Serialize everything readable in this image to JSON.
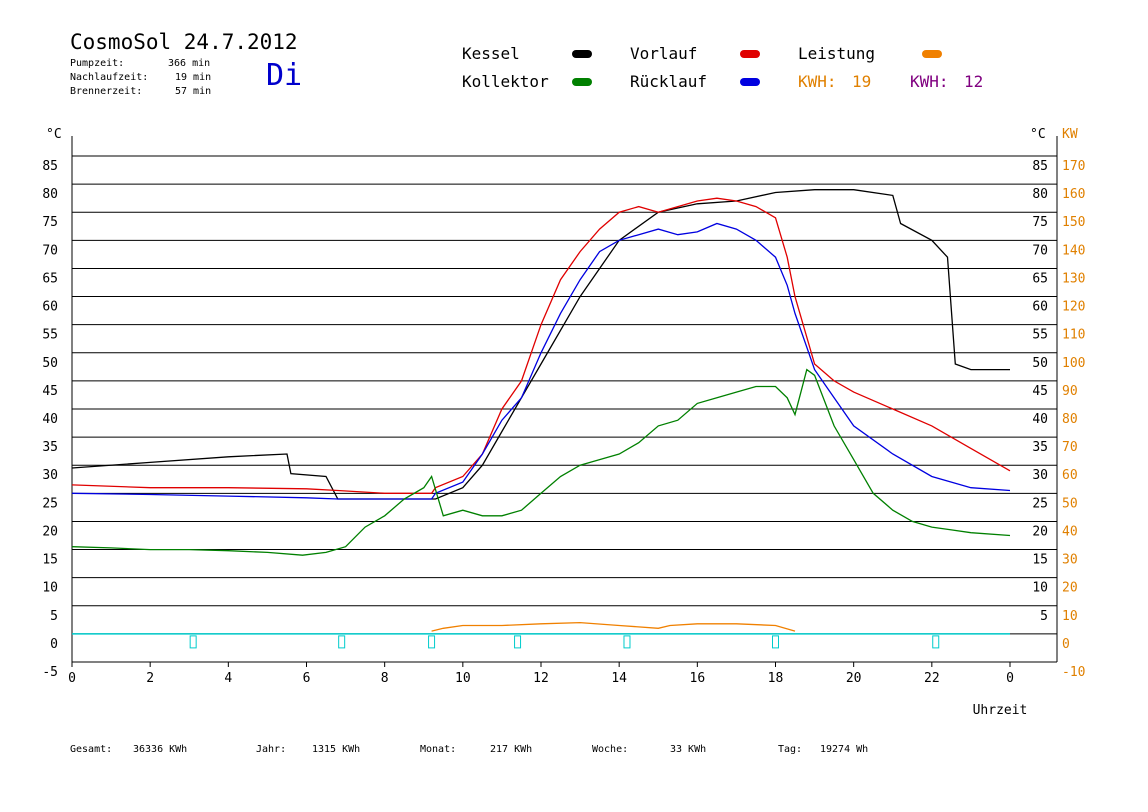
{
  "header": {
    "title": "CosmoSol 24.7.2012",
    "day": "Di",
    "stats": [
      {
        "label": "Pumpzeit:",
        "value": "366 min"
      },
      {
        "label": "Nachlaufzeit:",
        "value": "19 min"
      },
      {
        "label": "Brennerzeit:",
        "value": "57 min"
      }
    ]
  },
  "legend": {
    "kessel": {
      "label": "Kessel",
      "color": "#000000"
    },
    "vorlauf": {
      "label": "Vorlauf",
      "color": "#e00000"
    },
    "leistung": {
      "label": "Leistung",
      "color": "#f08000"
    },
    "kollektor": {
      "label": "Kollektor",
      "color": "#008000"
    },
    "ruecklauf": {
      "label": "Rücklauf",
      "color": "#0000e0"
    },
    "kwh1": {
      "label": "KWH:",
      "value": "19",
      "color": "#e08000"
    },
    "kwh2": {
      "label": "KWH:",
      "value": "12",
      "color": "#800080"
    }
  },
  "footer": [
    {
      "label": "Gesamt:",
      "value": "36336 KWh"
    },
    {
      "label": "Jahr:",
      "value": "1315 KWh"
    },
    {
      "label": "Monat:",
      "value": "217 KWh"
    },
    {
      "label": "Woche:",
      "value": "33 KWh"
    },
    {
      "label": "Tag:",
      "value": "19274 Wh"
    }
  ],
  "chart_data": {
    "type": "line",
    "xlabel": "Uhrzeit",
    "ylabel_left": "°C",
    "ylabel_right_1": "°C",
    "ylabel_right_2": "KW",
    "xlim": [
      0,
      24
    ],
    "ylim": [
      -5,
      85
    ],
    "x_ticks": [
      "0",
      "2",
      "4",
      "6",
      "8",
      "10",
      "12",
      "14",
      "16",
      "18",
      "20",
      "22",
      "0"
    ],
    "y_ticks_left": [
      "-5",
      "0",
      "5",
      "10",
      "15",
      "20",
      "25",
      "30",
      "35",
      "40",
      "45",
      "50",
      "55",
      "60",
      "65",
      "70",
      "75",
      "80",
      "85"
    ],
    "y_ticks_right_c": [
      "5",
      "10",
      "15",
      "20",
      "25",
      "30",
      "35",
      "40",
      "45",
      "50",
      "55",
      "60",
      "65",
      "70",
      "75",
      "80",
      "85"
    ],
    "y_ticks_right_kw": [
      "-10",
      "0",
      "10",
      "20",
      "30",
      "40",
      "50",
      "60",
      "70",
      "80",
      "90",
      "100",
      "110",
      "120",
      "130",
      "140",
      "150",
      "160",
      "170"
    ],
    "grid": true,
    "series": [
      {
        "name": "Kessel",
        "color": "#000000",
        "x": [
          0,
          2,
          4,
          5.5,
          5.6,
          6.5,
          6.8,
          9.3,
          10,
          10.5,
          11,
          12,
          13,
          14,
          15,
          16,
          17,
          18,
          19,
          20,
          21,
          21.2,
          22,
          22.4,
          22.6,
          23,
          24
        ],
        "y": [
          29.5,
          30.5,
          31.5,
          32,
          28.5,
          28,
          24,
          24,
          26,
          30,
          36,
          48,
          60,
          70,
          75,
          76.5,
          77,
          78.5,
          79,
          79,
          78,
          73,
          70,
          67,
          48,
          47,
          47
        ]
      },
      {
        "name": "Vorlauf",
        "color": "#e00000",
        "x": [
          0,
          2,
          4,
          6,
          6.8,
          8,
          9.2,
          9.3,
          10,
          10.5,
          11,
          11.5,
          12,
          12.5,
          13,
          13.5,
          14,
          14.5,
          15,
          15.5,
          16,
          16.5,
          17,
          17.5,
          18,
          18.3,
          18.5,
          19,
          19.5,
          20,
          21,
          22,
          23,
          24
        ],
        "y": [
          26.5,
          26,
          26,
          25.8,
          25.5,
          25,
          25,
          26,
          28,
          32,
          40,
          45,
          55,
          63,
          68,
          72,
          75,
          76,
          75,
          76,
          77,
          77.5,
          77,
          76,
          74,
          67,
          60,
          48,
          45,
          43,
          40,
          37,
          33,
          29
        ]
      },
      {
        "name": "Rücklauf",
        "color": "#0000e0",
        "x": [
          0,
          2,
          4,
          6,
          6.8,
          8,
          9.2,
          9.3,
          10,
          10.5,
          11,
          11.5,
          12,
          12.5,
          13,
          13.5,
          14,
          14.5,
          15,
          15.5,
          16,
          16.5,
          17,
          17.5,
          18,
          18.3,
          18.5,
          19,
          19.5,
          20,
          21,
          22,
          23,
          24
        ],
        "y": [
          25,
          24.8,
          24.5,
          24.2,
          24,
          24,
          24,
          25,
          27,
          32,
          38,
          42,
          50,
          57,
          63,
          68,
          70,
          71,
          72,
          71,
          71.5,
          73,
          72,
          70,
          67,
          62,
          57,
          47,
          42,
          37,
          32,
          28,
          26,
          25.5
        ]
      },
      {
        "name": "Kollektor",
        "color": "#008000",
        "x": [
          0,
          1,
          2,
          3,
          4,
          5,
          5.9,
          6.5,
          7,
          7.5,
          8,
          8.5,
          9,
          9.2,
          9.5,
          10,
          10.5,
          11,
          11.5,
          12,
          12.5,
          13,
          13.5,
          14,
          14.5,
          15,
          15.5,
          16,
          16.5,
          17,
          17.5,
          18,
          18.3,
          18.5,
          18.8,
          19,
          19.5,
          20,
          20.5,
          21,
          21.5,
          22,
          22.5,
          23,
          24
        ],
        "y": [
          15.5,
          15.3,
          15,
          15,
          14.8,
          14.5,
          14,
          14.5,
          15.5,
          19,
          21,
          24,
          26,
          28,
          21,
          22,
          21,
          21,
          22,
          25,
          28,
          30,
          31,
          32,
          34,
          37,
          38,
          41,
          42,
          43,
          44,
          44,
          42,
          39,
          47,
          46,
          37,
          31,
          25,
          22,
          20,
          19,
          18.5,
          18,
          17.5
        ]
      },
      {
        "name": "Leistung",
        "color": "#f08000",
        "x": [
          9.2,
          9.5,
          10,
          10.5,
          11,
          12,
          13,
          14,
          15,
          15.3,
          16,
          17,
          18,
          18.5
        ],
        "y": [
          0.5,
          1,
          1.5,
          1.5,
          1.5,
          1.8,
          2,
          1.5,
          1,
          1.5,
          1.8,
          1.8,
          1.5,
          0.5
        ]
      }
    ]
  }
}
